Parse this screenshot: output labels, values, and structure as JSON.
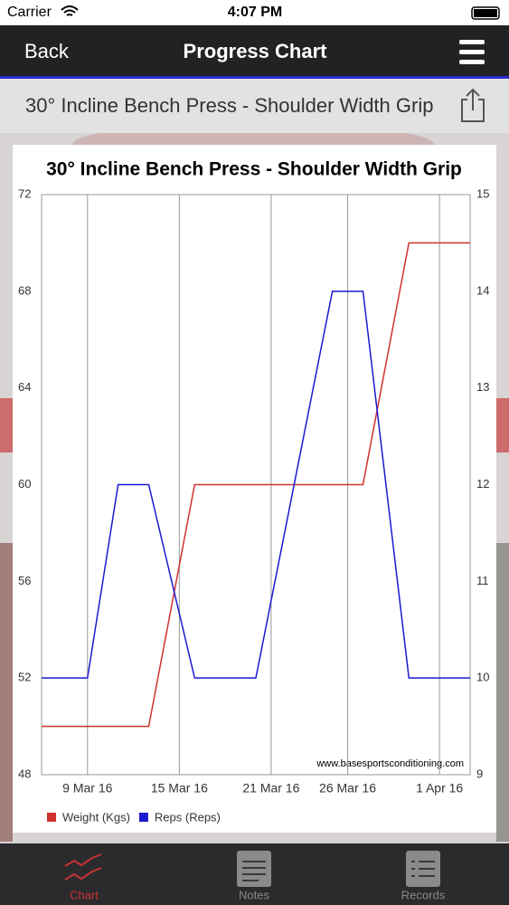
{
  "status_bar": {
    "carrier": "Carrier",
    "time": "4:07 PM"
  },
  "nav": {
    "back": "Back",
    "title": "Progress Chart"
  },
  "exercise_title": "30° Incline Bench Press - Shoulder Width Grip",
  "chart_data": {
    "type": "line",
    "title": "30° Incline Bench Press - Shoulder Width Grip",
    "watermark": "www.basesportsconditioning.com",
    "x": [
      "2016-03-06",
      "2016-03-09",
      "2016-03-11",
      "2016-03-13",
      "2016-03-16",
      "2016-03-20",
      "2016-03-25",
      "2016-03-27",
      "2016-03-30",
      "2016-04-03"
    ],
    "xlim": [
      "2016-03-06",
      "2016-04-03"
    ],
    "xticks": [
      {
        "value": "2016-03-09",
        "label": "9 Mar 16"
      },
      {
        "value": "2016-03-15",
        "label": "15 Mar 16"
      },
      {
        "value": "2016-03-21",
        "label": "21 Mar 16"
      },
      {
        "value": "2016-03-26",
        "label": "26 Mar 16"
      },
      {
        "value": "2016-04-01",
        "label": "1 Apr 16"
      }
    ],
    "ylim": [
      48,
      72
    ],
    "yticks": [
      48,
      52,
      56,
      60,
      64,
      68,
      72
    ],
    "y2lim": [
      9,
      15
    ],
    "y2ticks": [
      9,
      10,
      11,
      12,
      13,
      14,
      15
    ],
    "grid": "x",
    "series": [
      {
        "name": "Weight (Kgs)",
        "color": "#d0312d",
        "values": [
          50,
          50,
          50,
          50,
          60,
          60,
          60,
          60,
          70,
          70
        ]
      },
      {
        "name": "Reps (Reps)",
        "color": "#1a1ad0",
        "axis": "y2",
        "values": [
          10,
          10,
          12,
          12,
          10,
          10,
          14,
          14,
          10,
          10
        ]
      }
    ]
  },
  "tabs": [
    {
      "label": "Chart"
    },
    {
      "label": "Notes"
    },
    {
      "label": "Records"
    }
  ]
}
